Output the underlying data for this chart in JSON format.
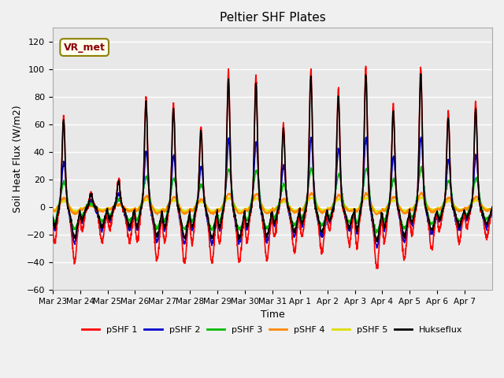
{
  "title": "Peltier SHF Plates",
  "ylabel": "Soil Heat Flux (W/m2)",
  "xlabel": "Time",
  "ylim": [
    -60,
    130
  ],
  "yticks": [
    -60,
    -40,
    -20,
    0,
    20,
    40,
    60,
    80,
    100,
    120
  ],
  "background_color": "#f0f0f0",
  "plot_bg_color": "#e8e8e8",
  "grid_color": "white",
  "annotation_box": "VR_met",
  "annotation_color": "#8B0000",
  "annotation_bg": "#fffff0",
  "annotation_border": "#8B8000",
  "series_order": [
    "pSHF 1",
    "pSHF 2",
    "pSHF 3",
    "pSHF 4",
    "pSHF 5",
    "Hukseflux"
  ],
  "series": {
    "pSHF 1": {
      "color": "#ff0000",
      "lw": 1.2
    },
    "pSHF 2": {
      "color": "#0000cc",
      "lw": 1.2
    },
    "pSHF 3": {
      "color": "#00bb00",
      "lw": 1.2
    },
    "pSHF 4": {
      "color": "#ff8800",
      "lw": 1.2
    },
    "pSHF 5": {
      "color": "#dddd00",
      "lw": 1.2
    },
    "Hukseflux": {
      "color": "#000000",
      "lw": 1.2
    }
  },
  "xtick_labels": [
    "Mar 23",
    "Mar 24",
    "Mar 25",
    "Mar 26",
    "Mar 27",
    "Mar 28",
    "Mar 29",
    "Mar 30",
    "Mar 31",
    "Apr 1",
    "Apr 2",
    "Apr 3",
    "Apr 4",
    "Apr 5",
    "Apr 6",
    "Apr 7"
  ],
  "n_days": 16
}
